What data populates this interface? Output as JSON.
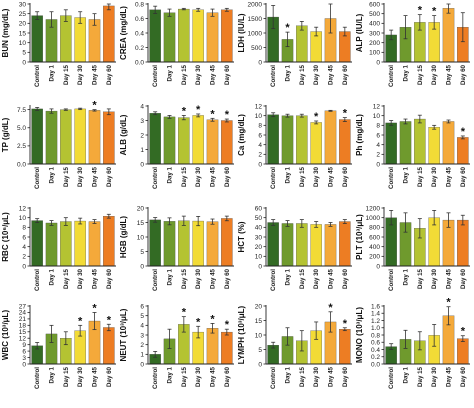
{
  "colors": [
    "#336b24",
    "#6f9a2d",
    "#b4c332",
    "#f2db36",
    "#f4a93a",
    "#ed7d23"
  ],
  "categories": [
    "Control",
    "Day 1",
    "Day 15",
    "Day 30",
    "Day 45",
    "Day 60"
  ],
  "chart_data": [
    {
      "type": "bar",
      "ylabel": "BUN (mg/dL)",
      "ylim": [
        0,
        30
      ],
      "ticks": [
        0,
        5,
        10,
        15,
        20,
        25,
        30
      ],
      "categories": [
        "Control",
        "Day 1",
        "Day 15",
        "Day 30",
        "Day 45",
        "Day 60"
      ],
      "values": [
        24,
        22,
        24,
        23,
        22,
        29
      ],
      "errors": [
        2,
        4,
        3,
        3,
        3,
        2
      ],
      "significant": [
        false,
        false,
        false,
        false,
        false,
        true
      ]
    },
    {
      "type": "bar",
      "ylabel": "CREA (mg/dL)",
      "ylim": [
        0,
        0.8
      ],
      "ticks": [
        0.0,
        0.2,
        0.4,
        0.6,
        0.8
      ],
      "categories": [
        "Control",
        "Day 1",
        "Day 15",
        "Day 30",
        "Day 45",
        "Day 60"
      ],
      "values": [
        0.72,
        0.68,
        0.73,
        0.72,
        0.68,
        0.72
      ],
      "errors": [
        0.05,
        0.05,
        0.01,
        0.02,
        0.05,
        0.02
      ],
      "significant": [
        false,
        false,
        false,
        false,
        false,
        false
      ]
    },
    {
      "type": "bar",
      "ylabel": "LDH (IU/L)",
      "ylim": [
        0,
        2000
      ],
      "ticks": [
        0,
        500,
        1000,
        1500,
        2000
      ],
      "categories": [
        "Control",
        "Day 1",
        "Day 15",
        "Day 30",
        "Day 45",
        "Day 60"
      ],
      "values": [
        1550,
        780,
        1250,
        1050,
        1500,
        1050
      ],
      "errors": [
        400,
        250,
        150,
        150,
        500,
        150
      ],
      "significant": [
        false,
        true,
        false,
        false,
        false,
        false
      ]
    },
    {
      "type": "bar",
      "ylabel": "ALP (IU/L)",
      "ylim": [
        0,
        600
      ],
      "ticks": [
        0,
        100,
        200,
        300,
        400,
        500,
        600
      ],
      "categories": [
        "Control",
        "Day 1",
        "Day 15",
        "Day 30",
        "Day 45",
        "Day 60"
      ],
      "values": [
        280,
        360,
        410,
        410,
        555,
        360
      ],
      "errors": [
        50,
        120,
        80,
        70,
        50,
        150
      ],
      "significant": [
        false,
        false,
        true,
        true,
        true,
        false
      ],
      "double_star": [
        false,
        false,
        false,
        false,
        true,
        false
      ]
    },
    {
      "type": "bar",
      "ylabel": "TP (g/dL)",
      "ylim": [
        0,
        8
      ],
      "ticks": [
        0.0,
        2.5,
        5.0,
        7.5
      ],
      "tick_labels": [
        "0.0",
        "2.5",
        "5.0",
        "7.5"
      ],
      "categories": [
        "Control",
        "Day 1",
        "Day 15",
        "Day 30",
        "Day 45",
        "Day 60"
      ],
      "values": [
        7.6,
        7.3,
        7.5,
        7.6,
        7.4,
        7.2
      ],
      "errors": [
        0.2,
        0.3,
        0.1,
        0.1,
        0.1,
        0.4
      ],
      "significant": [
        false,
        false,
        false,
        false,
        true,
        false
      ]
    },
    {
      "type": "bar",
      "ylabel": "ALB (g/dL)",
      "ylim": [
        0,
        4
      ],
      "ticks": [
        0,
        1,
        2,
        3,
        4
      ],
      "categories": [
        "Control",
        "Day 1",
        "Day 15",
        "Day 30",
        "Day 45",
        "Day 60"
      ],
      "values": [
        3.5,
        3.25,
        3.2,
        3.35,
        3.05,
        3.0
      ],
      "errors": [
        0.1,
        0.1,
        0.15,
        0.1,
        0.1,
        0.1
      ],
      "significant": [
        false,
        false,
        true,
        true,
        true,
        true
      ]
    },
    {
      "type": "bar",
      "ylabel": "Ca (mg/dL)",
      "ylim": [
        0,
        12
      ],
      "ticks": [
        0,
        2,
        4,
        6,
        8,
        10,
        12
      ],
      "categories": [
        "Control",
        "Day 1",
        "Day 15",
        "Day 30",
        "Day 45",
        "Day 60"
      ],
      "values": [
        10.2,
        10.0,
        10.0,
        8.6,
        11.0,
        9.2
      ],
      "errors": [
        0.4,
        0.3,
        0.3,
        0.3,
        0.1,
        0.4
      ],
      "significant": [
        false,
        false,
        false,
        true,
        false,
        true
      ]
    },
    {
      "type": "bar",
      "ylabel": "Ph (mg/dL)",
      "ylim": [
        0,
        12
      ],
      "ticks": [
        0,
        2,
        4,
        6,
        8,
        10,
        12
      ],
      "categories": [
        "Control",
        "Day 1",
        "Day 15",
        "Day 30",
        "Day 45",
        "Day 60"
      ],
      "values": [
        8.5,
        8.8,
        9.3,
        7.6,
        8.8,
        5.5
      ],
      "errors": [
        0.5,
        0.5,
        0.8,
        0.4,
        0.3,
        0.3
      ],
      "significant": [
        false,
        false,
        false,
        false,
        false,
        true
      ]
    },
    {
      "type": "bar",
      "ylabel": "RBC (10⁶/μL)",
      "ylim": [
        0,
        12
      ],
      "ticks": [
        0,
        2,
        4,
        6,
        8,
        10,
        12
      ],
      "categories": [
        "Control",
        "Day 1",
        "Day 15",
        "Day 30",
        "Day 45",
        "Day 60"
      ],
      "values": [
        9.4,
        8.9,
        9.2,
        9.3,
        9.2,
        10.3
      ],
      "errors": [
        0.4,
        0.5,
        0.8,
        0.6,
        0.4,
        0.4
      ],
      "significant": [
        false,
        false,
        false,
        false,
        false,
        false
      ]
    },
    {
      "type": "bar",
      "ylabel": "HGB (g/dL)",
      "ylim": [
        0,
        20
      ],
      "ticks": [
        0,
        5,
        10,
        15,
        20
      ],
      "categories": [
        "Control",
        "Day 1",
        "Day 15",
        "Day 30",
        "Day 45",
        "Day 60"
      ],
      "values": [
        15.9,
        15.4,
        15.6,
        15.5,
        15.3,
        16.4
      ],
      "errors": [
        0.8,
        1.2,
        1.6,
        1.6,
        0.9,
        0.8
      ],
      "significant": [
        false,
        false,
        false,
        false,
        false,
        false
      ]
    },
    {
      "type": "bar",
      "ylabel": "HCT (%)",
      "ylim": [
        0,
        60
      ],
      "ticks": [
        0,
        10,
        20,
        30,
        40,
        50,
        60
      ],
      "categories": [
        "Control",
        "Day 1",
        "Day 15",
        "Day 30",
        "Day 45",
        "Day 60"
      ],
      "values": [
        45,
        44,
        44,
        43,
        43,
        46
      ],
      "errors": [
        3,
        3,
        4,
        3,
        2,
        2
      ],
      "significant": [
        false,
        false,
        false,
        false,
        false,
        false
      ]
    },
    {
      "type": "bar",
      "ylabel": "PLT (10³/μL)",
      "ylim": [
        0,
        1200
      ],
      "ticks": [
        0,
        200,
        400,
        600,
        800,
        1000,
        1200
      ],
      "categories": [
        "Control",
        "Day 1",
        "Day 15",
        "Day 30",
        "Day 45",
        "Day 60"
      ],
      "values": [
        1000,
        900,
        780,
        1000,
        950,
        950
      ],
      "errors": [
        150,
        200,
        200,
        150,
        150,
        100
      ],
      "significant": [
        false,
        false,
        false,
        false,
        false,
        false
      ]
    },
    {
      "type": "bar",
      "ylabel": "WBC (10³/μL)",
      "ylim": [
        0,
        27
      ],
      "ticks": [
        0,
        3,
        6,
        9,
        12,
        15,
        18,
        21,
        24,
        27
      ],
      "categories": [
        "Control",
        "Day 1",
        "Day 15",
        "Day 30",
        "Day 45",
        "Day 60"
      ],
      "values": [
        8.5,
        14,
        12,
        15.5,
        20,
        17
      ],
      "errors": [
        1.5,
        4,
        3,
        2.5,
        4,
        1.5
      ],
      "significant": [
        false,
        false,
        false,
        true,
        true,
        true
      ]
    },
    {
      "type": "bar",
      "ylabel": "NEUT (10³/μL)",
      "ylim": [
        0,
        6
      ],
      "ticks": [
        0,
        1,
        2,
        3,
        4,
        5,
        6
      ],
      "categories": [
        "Control",
        "Day 1",
        "Day 15",
        "Day 30",
        "Day 45",
        "Day 60"
      ],
      "values": [
        1.0,
        2.6,
        4.1,
        3.3,
        3.7,
        3.3
      ],
      "errors": [
        0.3,
        1.0,
        0.8,
        0.6,
        0.5,
        0.3
      ],
      "significant": [
        false,
        false,
        true,
        true,
        true,
        true
      ]
    },
    {
      "type": "bar",
      "ylabel": "LYMPH (10³/μL)",
      "ylim": [
        0,
        20
      ],
      "ticks": [
        0,
        5,
        10,
        15,
        20
      ],
      "categories": [
        "Control",
        "Day 1",
        "Day 15",
        "Day 30",
        "Day 45",
        "Day 60"
      ],
      "values": [
        6.5,
        9.5,
        8.0,
        11.5,
        14.5,
        12
      ],
      "errors": [
        1.0,
        3.0,
        3.5,
        3.0,
        3.5,
        0.5
      ],
      "significant": [
        false,
        false,
        false,
        false,
        true,
        true
      ]
    },
    {
      "type": "bar",
      "ylabel": "MONO (10³/μL)",
      "ylim": [
        0,
        1.6
      ],
      "ticks": [
        0.0,
        0.2,
        0.4,
        0.6,
        0.8,
        1.0,
        1.2,
        1.4,
        1.6
      ],
      "categories": [
        "Control",
        "Day 1",
        "Day 15",
        "Day 30",
        "Day 45",
        "Day 60"
      ],
      "values": [
        0.48,
        0.68,
        0.64,
        0.79,
        1.33,
        0.7
      ],
      "errors": [
        0.08,
        0.25,
        0.25,
        0.3,
        0.25,
        0.08
      ],
      "significant": [
        false,
        false,
        false,
        false,
        true,
        true
      ]
    }
  ]
}
